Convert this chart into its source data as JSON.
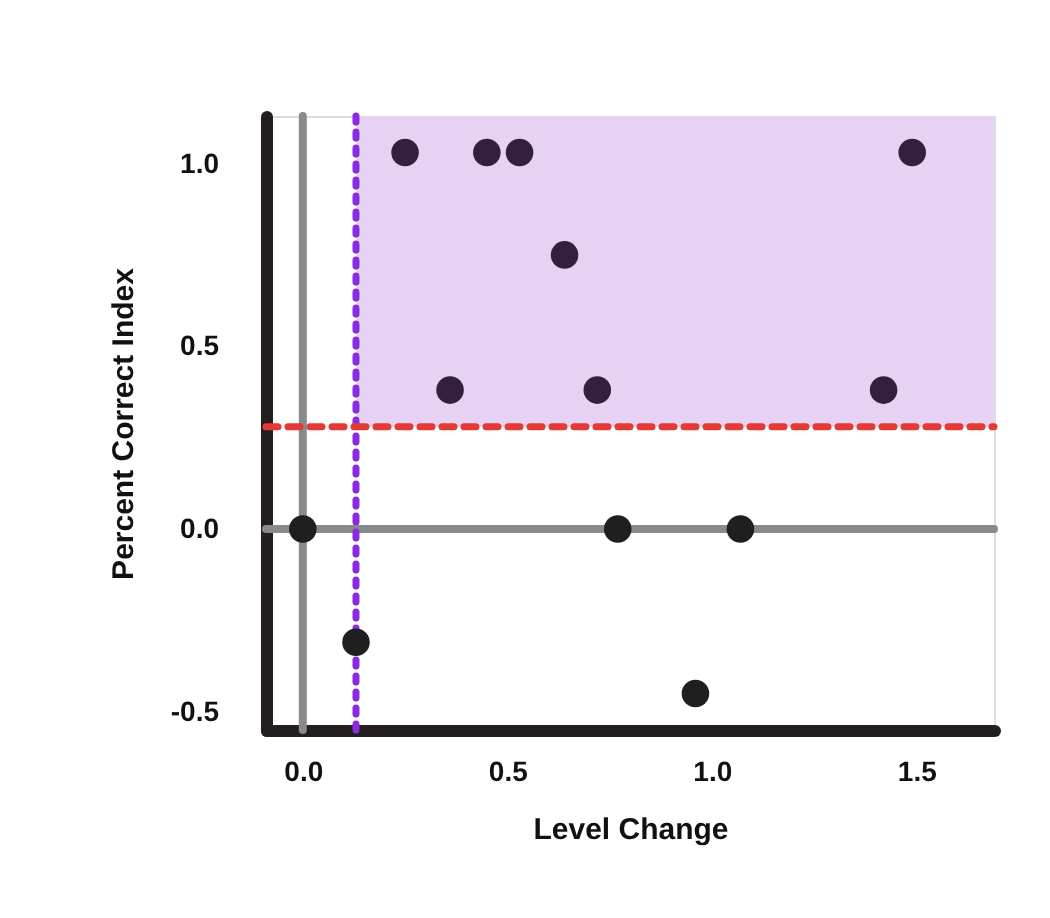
{
  "chart_data": {
    "type": "scatter",
    "xlabel": "Level Change",
    "ylabel": "Percent Correct Index",
    "xlim": [
      -0.09,
      1.69
    ],
    "ylim": [
      -0.55,
      1.13
    ],
    "xticks": [
      {
        "value": 0,
        "label": "0.0"
      },
      0.5,
      {
        "value": 1,
        "label": "1.0"
      },
      1.5
    ],
    "yticks": [
      {
        "value": -0.5,
        "label": "-0.5"
      },
      {
        "value": 0,
        "label": "0.0"
      },
      0.5,
      {
        "value": 1,
        "label": "1.0"
      }
    ],
    "series": [
      {
        "marker": "circle",
        "x": [
          0.25,
          0.45,
          0.53,
          1.49,
          0.64,
          0.36,
          0.72,
          1.42,
          0.0,
          0.77,
          1.07,
          0.13,
          0.96
        ],
        "values": [
          1.03,
          1.03,
          1.03,
          1.03,
          0.75,
          0.38,
          0.38,
          0.38,
          0.0,
          0.0,
          0.0,
          -0.31,
          -0.45
        ],
        "colors": [
          "#33203f",
          "#33203f",
          "#33203f",
          "#33203f",
          "#33203f",
          "#33203f",
          "#33203f",
          "#33203f",
          "#1f1f1f",
          "#1f1f1f",
          "#1f1f1f",
          "#1f1f1f",
          "#1f1f1f"
        ]
      }
    ],
    "ref_lines": [
      {
        "axis": "x",
        "value": 0,
        "color": "#8a8a8a",
        "line_style": "solid"
      },
      {
        "axis": "y",
        "value": 0,
        "color": "#8a8a8a",
        "line_style": "solid"
      },
      {
        "axis": "x",
        "value": 0.13,
        "color": "#8a2be2",
        "line_style": "dotted"
      },
      {
        "axis": "y",
        "value": 0.28,
        "color": "#e53935",
        "line_style": "dashed"
      }
    ],
    "bands": [
      {
        "axis": "y",
        "from": 0.28,
        "to": 1.13,
        "color": "#e6d3f3"
      }
    ],
    "grid": false
  }
}
